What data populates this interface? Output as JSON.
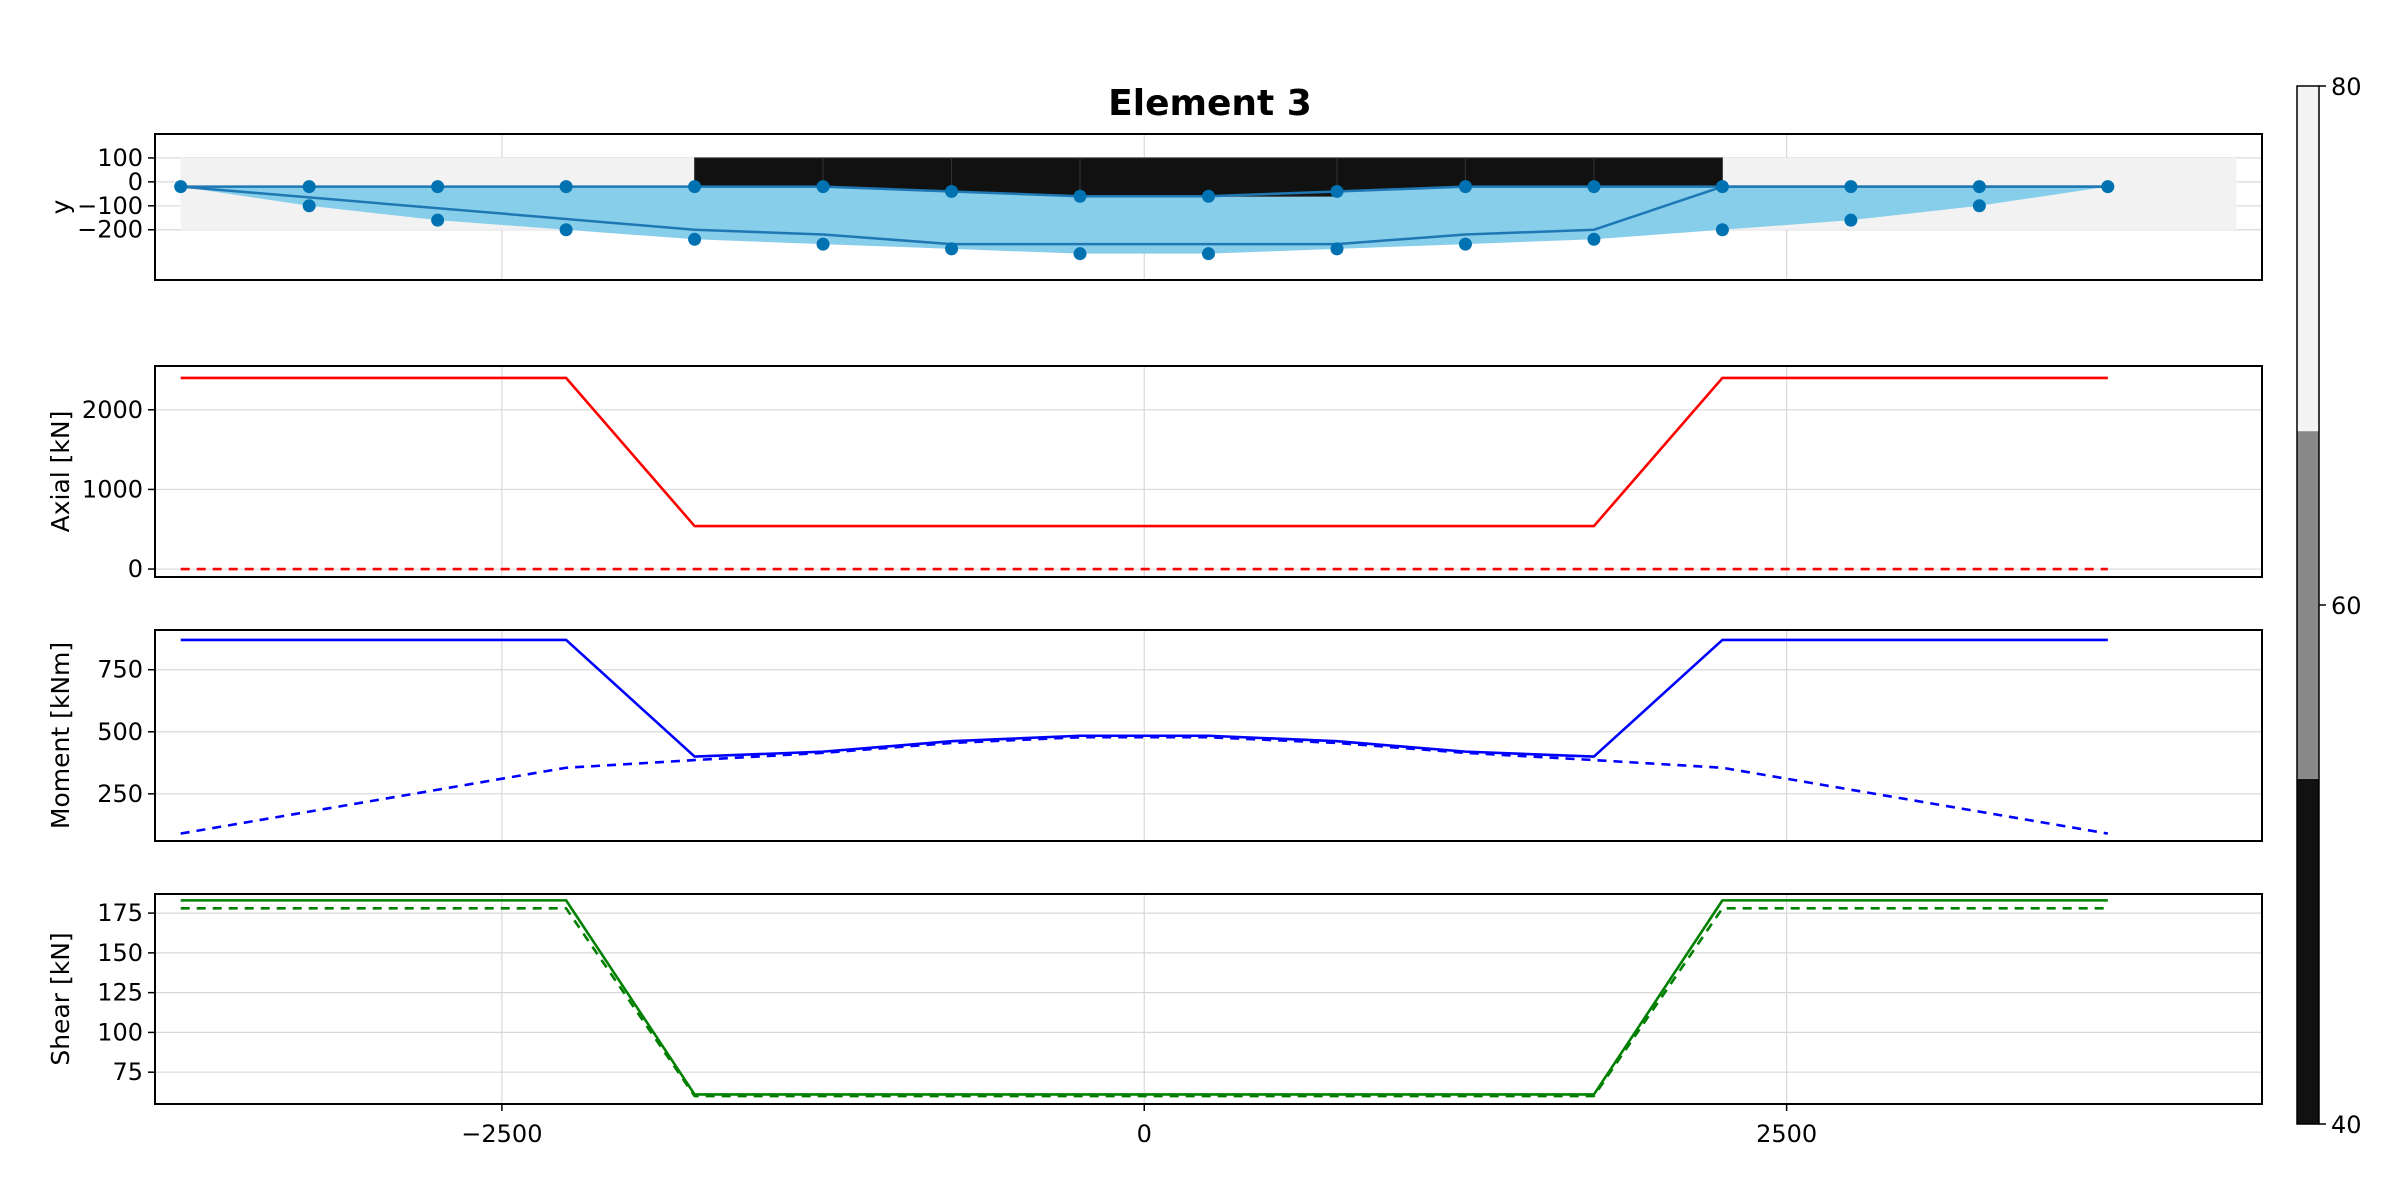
{
  "figure": {
    "title": "Element 3"
  },
  "chart_data": [
    {
      "type": "section",
      "name": "geometry",
      "ylabel": "y",
      "xlim": [
        -3850,
        4350
      ],
      "ylim": [
        -410,
        200
      ],
      "yticks": [
        100,
        0,
        -100,
        -200
      ],
      "ytick_labels": [
        "100",
        "0",
        "−100",
        "−200"
      ],
      "xticks": [
        -2500,
        0,
        2500
      ],
      "bounding_region": {
        "x": [
          -3750,
          4250
        ],
        "y": [
          -200,
          100
        ]
      },
      "slab_blocks": [
        {
          "x": [
            -1750,
            -1250
          ],
          "top": 100,
          "bottom": [
            -20,
            -20
          ],
          "shade": 40
        },
        {
          "x": [
            -1250,
            -750
          ],
          "top": 100,
          "bottom": [
            -20,
            -40
          ],
          "shade": 40
        },
        {
          "x": [
            -750,
            -250
          ],
          "top": 100,
          "bottom": [
            -40,
            -60
          ],
          "shade": 40
        },
        {
          "x": [
            -250,
            750
          ],
          "top": 100,
          "bottom": [
            -60,
            -60
          ],
          "shade": 40
        },
        {
          "x": [
            750,
            1250
          ],
          "top": 100,
          "bottom": [
            -40,
            -20
          ],
          "shade": 40
        },
        {
          "x": [
            1250,
            1750
          ],
          "top": 100,
          "bottom": [
            -20,
            -20
          ],
          "shade": 40
        },
        {
          "x": [
            1750,
            2250
          ],
          "top": 100,
          "bottom": [
            -20,
            -20
          ],
          "shade": 40
        }
      ],
      "upper_profile": [
        [
          -3750,
          -20
        ],
        [
          -2250,
          -20
        ],
        [
          -1750,
          -20
        ],
        [
          -1250,
          -20
        ],
        [
          -750,
          -40
        ],
        [
          -250,
          -60
        ],
        [
          250,
          -60
        ],
        [
          750,
          -40
        ],
        [
          1250,
          -20
        ],
        [
          1750,
          -20
        ],
        [
          2250,
          -20
        ],
        [
          3750,
          -20
        ]
      ],
      "section_outline": [
        [
          -3750,
          -20
        ],
        [
          -1750,
          -200
        ],
        [
          -1250,
          -220
        ],
        [
          -750,
          -260
        ],
        [
          -250,
          -260
        ],
        [
          250,
          -260
        ],
        [
          750,
          -260
        ],
        [
          1250,
          -220
        ],
        [
          1750,
          -200
        ],
        [
          2250,
          -20
        ],
        [
          3750,
          -20
        ]
      ],
      "lower_envelope": [
        [
          -3750,
          -20
        ],
        [
          -3250,
          -100
        ],
        [
          -2750,
          -160
        ],
        [
          -2250,
          -200
        ],
        [
          -1750,
          -240
        ],
        [
          -1250,
          -260
        ],
        [
          -750,
          -280
        ],
        [
          -250,
          -300
        ],
        [
          250,
          -300
        ],
        [
          750,
          -280
        ],
        [
          1250,
          -260
        ],
        [
          1750,
          -240
        ],
        [
          2250,
          -200
        ],
        [
          2750,
          -160
        ],
        [
          3250,
          -100
        ],
        [
          3750,
          -20
        ]
      ],
      "nodes": [
        [
          -3750,
          -20
        ],
        [
          -3250,
          -20
        ],
        [
          -2750,
          -20
        ],
        [
          -2250,
          -20
        ],
        [
          -1750,
          -20
        ],
        [
          -1250,
          -20
        ],
        [
          -750,
          -40
        ],
        [
          -250,
          -60
        ],
        [
          250,
          -60
        ],
        [
          750,
          -40
        ],
        [
          1250,
          -20
        ],
        [
          1750,
          -20
        ],
        [
          2250,
          -20
        ],
        [
          2750,
          -20
        ],
        [
          3250,
          -20
        ],
        [
          3750,
          -20
        ],
        [
          -3250,
          -100
        ],
        [
          -2750,
          -160
        ],
        [
          -2250,
          -200
        ],
        [
          -1750,
          -240
        ],
        [
          -1250,
          -260
        ],
        [
          -750,
          -280
        ],
        [
          -250,
          -300
        ],
        [
          250,
          -300
        ],
        [
          750,
          -280
        ],
        [
          1250,
          -260
        ],
        [
          1750,
          -240
        ],
        [
          2250,
          -200
        ],
        [
          2750,
          -160
        ],
        [
          3250,
          -100
        ]
      ],
      "colors": {
        "envelope": "#87ceeb",
        "outline": "#1f77b4",
        "nodes": "#0072b2",
        "region": "#f2f2f2"
      }
    },
    {
      "type": "line",
      "name": "axial",
      "ylabel": "Axial [kN]",
      "xlim": [
        -3850,
        4350
      ],
      "ylim": [
        -100,
        2550
      ],
      "yticks": [
        0,
        1000,
        2000
      ],
      "ytick_labels": [
        "0",
        "1000",
        "2000"
      ],
      "xticks": [
        -2500,
        0,
        2500
      ],
      "series": [
        {
          "style": "solid",
          "color": "#ff0000",
          "points": [
            [
              -3750,
              2400
            ],
            [
              -2250,
              2400
            ],
            [
              -1750,
              540
            ],
            [
              1750,
              540
            ],
            [
              2250,
              2400
            ],
            [
              3750,
              2400
            ]
          ]
        },
        {
          "style": "dashed",
          "color": "#ff0000",
          "points": [
            [
              -3750,
              0
            ],
            [
              3750,
              0
            ]
          ]
        }
      ]
    },
    {
      "type": "line",
      "name": "moment",
      "ylabel": "Moment [kNm]",
      "xlim": [
        -3850,
        4350
      ],
      "ylim": [
        60,
        910
      ],
      "yticks": [
        250,
        500,
        750
      ],
      "ytick_labels": [
        "250",
        "500",
        "750"
      ],
      "xticks": [
        -2500,
        0,
        2500
      ],
      "series": [
        {
          "style": "solid",
          "color": "#0000ff",
          "points": [
            [
              -3750,
              870
            ],
            [
              -2250,
              870
            ],
            [
              -1750,
              400
            ],
            [
              -1250,
              420
            ],
            [
              -750,
              462
            ],
            [
              -250,
              484
            ],
            [
              250,
              484
            ],
            [
              750,
              462
            ],
            [
              1250,
              420
            ],
            [
              1750,
              400
            ],
            [
              2250,
              870
            ],
            [
              3750,
              870
            ]
          ]
        },
        {
          "style": "dashed",
          "color": "#0000ff",
          "points": [
            [
              -3750,
              90
            ],
            [
              -2250,
              355
            ],
            [
              -1750,
              386
            ],
            [
              -1250,
              415
            ],
            [
              -750,
              455
            ],
            [
              -250,
              478
            ],
            [
              250,
              478
            ],
            [
              750,
              455
            ],
            [
              1250,
              415
            ],
            [
              1750,
              386
            ],
            [
              2250,
              355
            ],
            [
              3750,
              90
            ]
          ]
        }
      ]
    },
    {
      "type": "line",
      "name": "shear",
      "ylabel": "Shear [kN]",
      "xlim": [
        -3850,
        4350
      ],
      "ylim": [
        55,
        187
      ],
      "yticks": [
        75,
        100,
        125,
        150,
        175
      ],
      "ytick_labels": [
        "75",
        "100",
        "125",
        "150",
        "175"
      ],
      "xticks": [
        -2500,
        0,
        2500
      ],
      "xtick_labels": [
        "−2500",
        "0",
        "2500"
      ],
      "series": [
        {
          "style": "solid",
          "color": "#008000",
          "points": [
            [
              -3750,
              183
            ],
            [
              -2250,
              183
            ],
            [
              -1750,
              61
            ],
            [
              1750,
              61
            ],
            [
              2250,
              183
            ],
            [
              3750,
              183
            ]
          ]
        },
        {
          "style": "dashed",
          "color": "#008000",
          "points": [
            [
              -3750,
              178
            ],
            [
              -2250,
              178
            ],
            [
              -1750,
              60
            ],
            [
              1750,
              60
            ],
            [
              2250,
              178
            ],
            [
              3750,
              178
            ]
          ]
        }
      ]
    }
  ],
  "colorbar": {
    "ticks": [
      80,
      60,
      40
    ],
    "tick_labels": [
      "80",
      "60",
      "40"
    ],
    "range": [
      40,
      80
    ],
    "bands": [
      {
        "from": 40,
        "to": 53.3,
        "color": "#111111"
      },
      {
        "from": 53.3,
        "to": 66.7,
        "color": "#888888"
      },
      {
        "from": 66.7,
        "to": 80,
        "color": "#f4f4f4"
      }
    ]
  }
}
